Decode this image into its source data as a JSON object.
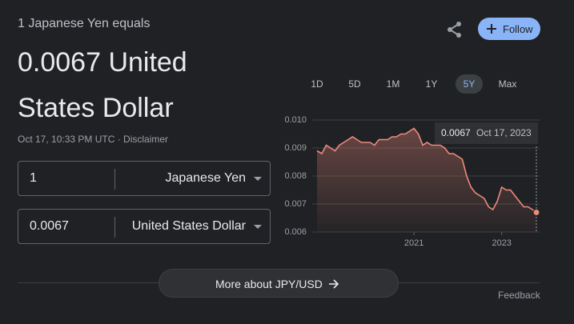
{
  "header": {
    "subtitle": "1 Japanese Yen equals",
    "result": "0.0067 United States Dollar",
    "timestamp": "Oct 17, 10:33 PM UTC · Disclaimer"
  },
  "follow": "Follow",
  "converter": {
    "rows": [
      {
        "amount": "1",
        "currency": "Japanese Yen"
      },
      {
        "amount": "0.0067",
        "currency": "United States Dollar"
      }
    ]
  },
  "ranges": [
    "1D",
    "5D",
    "1M",
    "1Y",
    "5Y",
    "Max"
  ],
  "selected_range": 4,
  "chart_data": {
    "type": "area",
    "color": "#ee8b7c",
    "x": [
      2018.79,
      2018.9,
      2019.0,
      2019.1,
      2019.2,
      2019.3,
      2019.4,
      2019.5,
      2019.6,
      2019.7,
      2019.8,
      2019.9,
      2020.0,
      2020.1,
      2020.2,
      2020.3,
      2020.4,
      2020.5,
      2020.6,
      2020.7,
      2020.8,
      2020.9,
      2021.0,
      2021.1,
      2021.2,
      2021.3,
      2021.4,
      2021.5,
      2021.6,
      2021.7,
      2021.8,
      2021.9,
      2022.0,
      2022.1,
      2022.2,
      2022.3,
      2022.4,
      2022.5,
      2022.6,
      2022.7,
      2022.8,
      2022.9,
      2023.0,
      2023.1,
      2023.2,
      2023.3,
      2023.4,
      2023.5,
      2023.6,
      2023.7,
      2023.79
    ],
    "values": [
      0.0089,
      0.0088,
      0.0091,
      0.009,
      0.0089,
      0.0091,
      0.0092,
      0.0093,
      0.0094,
      0.0093,
      0.0092,
      0.0092,
      0.0092,
      0.0091,
      0.0093,
      0.0093,
      0.0093,
      0.0094,
      0.0094,
      0.0095,
      0.0095,
      0.0096,
      0.0097,
      0.0095,
      0.0091,
      0.0092,
      0.0091,
      0.0091,
      0.0091,
      0.009,
      0.0088,
      0.0088,
      0.0087,
      0.0086,
      0.008,
      0.0076,
      0.0074,
      0.0073,
      0.0072,
      0.0069,
      0.0068,
      0.0071,
      0.0076,
      0.0075,
      0.0075,
      0.0073,
      0.0071,
      0.0069,
      0.0069,
      0.0068,
      0.0067
    ],
    "xlim": [
      2018.79,
      2023.79
    ],
    "xticks": [
      2021,
      2023
    ],
    "ylim": [
      0.006,
      0.01
    ],
    "yticks": [
      {
        "value": 0.01,
        "label": "0.010"
      },
      0.009,
      0.008,
      0.007,
      0.006
    ],
    "grid": true,
    "tooltip": {
      "value_label": "0.0067",
      "date": "Oct 17, 2023"
    }
  },
  "more": "More about JPY/USD",
  "feedback": "Feedback"
}
